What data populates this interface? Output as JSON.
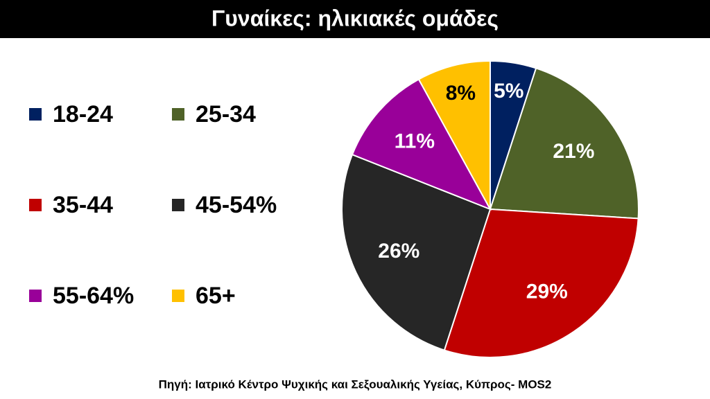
{
  "chart_data": {
    "type": "pie",
    "title": "Γυναίκες: ηλικιακές ομάδες",
    "categories": [
      "18-24",
      "25-34",
      "35-44",
      "45-54%",
      "55-64%",
      "65+"
    ],
    "values": [
      5,
      21,
      29,
      26,
      11,
      8
    ],
    "value_labels": [
      "5%",
      "21%",
      "29%",
      "26%",
      "11%",
      "8%"
    ],
    "colors": [
      "#002060",
      "#4f6228",
      "#c00000",
      "#262626",
      "#990099",
      "#ffc000"
    ],
    "source": "Πηγή: Ιατρικό Κέντρο Ψυχικής και Σεξουαλικής Υγείας, Κύπρος- MOS2"
  }
}
